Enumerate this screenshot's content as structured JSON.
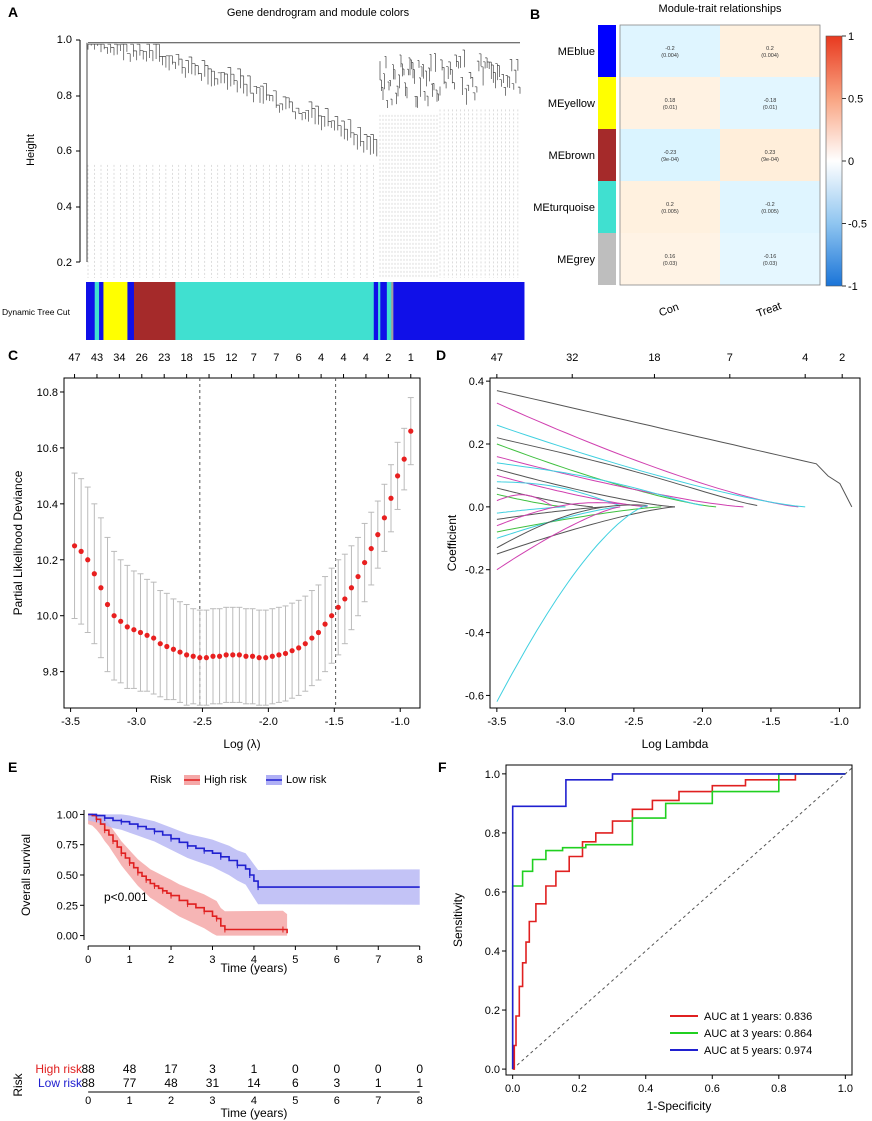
{
  "panels": {
    "A": {
      "letter": "A",
      "title": "Gene dendrogram and module colors",
      "ylabel": "Height",
      "yticks": [
        "1.0",
        "0.8",
        "0.6",
        "0.4",
        "0.2"
      ],
      "tree_cut_label": "Dynamic Tree Cut"
    },
    "B": {
      "letter": "B"
    },
    "C": {
      "letter": "C"
    },
    "D": {
      "letter": "D"
    },
    "E": {
      "letter": "E"
    },
    "F": {
      "letter": "F"
    }
  },
  "chart_data": [
    {
      "panel": "A",
      "type": "dendrogram",
      "title": "Gene dendrogram and module colors",
      "ylabel": "Height",
      "ylim": [
        0.2,
        1.0
      ],
      "module_bar": [
        {
          "color": "#1010e8",
          "fraction": 0.02
        },
        {
          "color": "#40e0d0",
          "fraction": 0.01
        },
        {
          "color": "#1010e8",
          "fraction": 0.01
        },
        {
          "color": "#ffff00",
          "fraction": 0.055
        },
        {
          "color": "#1010e8",
          "fraction": 0.015
        },
        {
          "color": "#a52a2a",
          "fraction": 0.095
        },
        {
          "color": "#40e0d0",
          "fraction": 0.455
        },
        {
          "color": "#1010e8",
          "fraction": 0.01
        },
        {
          "color": "#40e0d0",
          "fraction": 0.005
        },
        {
          "color": "#1010e8",
          "fraction": 0.015
        },
        {
          "color": "#40e0d0",
          "fraction": 0.01
        },
        {
          "color": "#a0a0a0",
          "fraction": 0.005
        },
        {
          "color": "#1010e8",
          "fraction": 0.3
        }
      ]
    },
    {
      "panel": "B",
      "type": "heatmap",
      "title": "Module-trait relationships",
      "rows": [
        "MEblue",
        "MEyellow",
        "MEbrown",
        "MEturquoise",
        "MEgrey"
      ],
      "row_colors": [
        "#0000ff",
        "#ffff00",
        "#a52a2a",
        "#40e0d0",
        "#bebebe"
      ],
      "columns": [
        "Con",
        "Treat"
      ],
      "values": [
        [
          -0.2,
          0.2
        ],
        [
          0.18,
          -0.18
        ],
        [
          -0.23,
          0.23
        ],
        [
          0.2,
          -0.2
        ],
        [
          0.16,
          -0.16
        ]
      ],
      "labels": [
        [
          [
            "-0.2",
            "(0.004)"
          ],
          [
            "0.2",
            "(0.004)"
          ]
        ],
        [
          [
            "0.18",
            "(0.01)"
          ],
          [
            "-0.18",
            "(0.01)"
          ]
        ],
        [
          [
            "-0.23",
            "(9e-04)"
          ],
          [
            "0.23",
            "(9e-04)"
          ]
        ],
        [
          [
            "0.2",
            "(0.005)"
          ],
          [
            "-0.2",
            "(0.005)"
          ]
        ],
        [
          [
            "0.16",
            "(0.03)"
          ],
          [
            "-0.16",
            "(0.03)"
          ]
        ]
      ],
      "colorbar_range": [
        -1,
        1
      ],
      "colorbar_ticks": [
        "1",
        "0.5",
        "0",
        "-0.5",
        "-1"
      ]
    },
    {
      "panel": "C",
      "type": "scatter",
      "xlabel": "Log (λ)",
      "ylabel": "Partial Likelihood Deviance",
      "xlim": [
        -3.55,
        -0.85
      ],
      "ylim": [
        9.67,
        10.85
      ],
      "xticks": [
        "-3.5",
        "-3.0",
        "-2.5",
        "-2.0",
        "-1.5",
        "-1.0"
      ],
      "yticks": [
        "10.8",
        "10.6",
        "10.4",
        "10.2",
        "10.0",
        "9.8"
      ],
      "top_ticks": [
        "47",
        "43",
        "34",
        "26",
        "23",
        "18",
        "15",
        "12",
        "7",
        "7",
        "6",
        "4",
        "4",
        "4",
        "2",
        "1"
      ],
      "vlines": [
        -2.52,
        -1.49
      ],
      "x": [
        -3.47,
        -3.42,
        -3.37,
        -3.32,
        -3.27,
        -3.22,
        -3.17,
        -3.12,
        -3.07,
        -3.02,
        -2.97,
        -2.92,
        -2.87,
        -2.82,
        -2.77,
        -2.72,
        -2.67,
        -2.62,
        -2.57,
        -2.52,
        -2.47,
        -2.42,
        -2.37,
        -2.32,
        -2.27,
        -2.22,
        -2.17,
        -2.12,
        -2.07,
        -2.02,
        -1.97,
        -1.92,
        -1.87,
        -1.82,
        -1.77,
        -1.72,
        -1.67,
        -1.62,
        -1.57,
        -1.52,
        -1.47,
        -1.42,
        -1.37,
        -1.32,
        -1.27,
        -1.22,
        -1.17,
        -1.12,
        -1.07,
        -1.02,
        -0.97,
        -0.92
      ],
      "y": [
        10.25,
        10.23,
        10.2,
        10.15,
        10.1,
        10.04,
        10.0,
        9.98,
        9.96,
        9.95,
        9.94,
        9.93,
        9.92,
        9.9,
        9.89,
        9.88,
        9.87,
        9.86,
        9.855,
        9.85,
        9.85,
        9.855,
        9.855,
        9.86,
        9.86,
        9.86,
        9.855,
        9.855,
        9.85,
        9.85,
        9.855,
        9.86,
        9.865,
        9.875,
        9.885,
        9.9,
        9.92,
        9.94,
        9.97,
        10.0,
        10.03,
        10.06,
        10.1,
        10.14,
        10.19,
        10.24,
        10.29,
        10.35,
        10.42,
        10.5,
        10.56,
        10.66
      ],
      "err": [
        0.26,
        0.26,
        0.26,
        0.25,
        0.25,
        0.24,
        0.23,
        0.22,
        0.22,
        0.21,
        0.21,
        0.2,
        0.2,
        0.19,
        0.19,
        0.18,
        0.18,
        0.18,
        0.17,
        0.17,
        0.17,
        0.17,
        0.17,
        0.17,
        0.17,
        0.17,
        0.17,
        0.17,
        0.17,
        0.17,
        0.17,
        0.17,
        0.17,
        0.17,
        0.17,
        0.17,
        0.17,
        0.17,
        0.17,
        0.17,
        0.17,
        0.16,
        0.15,
        0.14,
        0.14,
        0.13,
        0.12,
        0.12,
        0.12,
        0.12,
        0.11,
        0.12
      ]
    },
    {
      "panel": "D",
      "type": "line",
      "xlabel": "Log Lambda",
      "ylabel": "Coefficient",
      "xlim": [
        -3.55,
        -0.85
      ],
      "ylim": [
        -0.64,
        0.41
      ],
      "xticks": [
        "-3.5",
        "-3.0",
        "-2.5",
        "-2.0",
        "-1.5",
        "-1.0"
      ],
      "yticks": [
        "0.4",
        "0.2",
        "0.0",
        "-0.2",
        "-0.4",
        "-0.6"
      ],
      "top_ticks": [
        "47",
        "32",
        "18",
        "7",
        "4",
        "2"
      ],
      "end_lambda": -0.91,
      "series": [
        {
          "color": "#555555",
          "start": 0.37,
          "end_at": -0.91
        },
        {
          "color": "#d040b0",
          "start": 0.33,
          "end_at": -1.3
        },
        {
          "color": "#40d0e0",
          "start": 0.26,
          "end_at": -1.25
        },
        {
          "color": "#555555",
          "start": 0.22,
          "end_at": -1.6
        },
        {
          "color": "#40c040",
          "start": 0.2,
          "end_at": -1.9
        },
        {
          "color": "#d040b0",
          "start": 0.16,
          "end_at": -1.7
        },
        {
          "color": "#40d0e0",
          "start": 0.14,
          "end_at": -2.0
        },
        {
          "color": "#555555",
          "start": 0.12,
          "end_at": -2.2
        },
        {
          "color": "#d040b0",
          "start": 0.1,
          "end_at": -2.4
        },
        {
          "color": "#40d0e0",
          "start": 0.08,
          "end_at": -2.6
        },
        {
          "color": "#555555",
          "start": 0.06,
          "end_at": -2.8
        },
        {
          "color": "#40c040",
          "start": 0.04,
          "end_at": -3.0
        },
        {
          "color": "#d040b0",
          "start": 0.02,
          "end_at": -3.1
        },
        {
          "color": "#40d0e0",
          "start": -0.02,
          "end_at": -3.0
        },
        {
          "color": "#555555",
          "start": -0.04,
          "end_at": -2.7
        },
        {
          "color": "#d040b0",
          "start": -0.06,
          "end_at": -2.5
        },
        {
          "color": "#40c040",
          "start": -0.08,
          "end_at": -2.3
        },
        {
          "color": "#40d0e0",
          "start": -0.1,
          "end_at": -2.6
        },
        {
          "color": "#555555",
          "start": -0.13,
          "end_at": -2.4
        },
        {
          "color": "#555555",
          "start": -0.15,
          "end_at": -2.2
        },
        {
          "color": "#d040b0",
          "start": -0.2,
          "end_at": -2.6
        },
        {
          "color": "#40d0e0",
          "start": -0.62,
          "end_at": -2.4
        }
      ]
    },
    {
      "panel": "E",
      "type": "line",
      "legend_title": "Risk",
      "legend": [
        "High risk",
        "Low risk"
      ],
      "xlabel": "Time (years)",
      "ylabel": "Overall survival",
      "xlim": [
        -0.1,
        8.2
      ],
      "ylim": [
        -0.02,
        1.02
      ],
      "xticks": [
        "0",
        "1",
        "2",
        "3",
        "4",
        "5",
        "6",
        "7",
        "8"
      ],
      "yticks": [
        "1.00",
        "0.75",
        "0.50",
        "0.25",
        "0.00"
      ],
      "annotation": "p<0.001",
      "series": [
        {
          "name": "High risk",
          "color": "#e02020",
          "x": [
            0,
            0.1,
            0.2,
            0.3,
            0.4,
            0.5,
            0.6,
            0.7,
            0.8,
            0.9,
            1.0,
            1.1,
            1.2,
            1.3,
            1.4,
            1.5,
            1.6,
            1.7,
            1.8,
            1.9,
            2.0,
            2.2,
            2.4,
            2.6,
            2.8,
            3.0,
            3.1,
            3.2,
            3.3,
            4.0,
            4.7,
            4.8
          ],
          "y": [
            1.0,
            0.99,
            0.96,
            0.92,
            0.87,
            0.83,
            0.78,
            0.73,
            0.68,
            0.64,
            0.6,
            0.56,
            0.52,
            0.49,
            0.46,
            0.43,
            0.41,
            0.39,
            0.37,
            0.35,
            0.33,
            0.29,
            0.26,
            0.23,
            0.2,
            0.16,
            0.14,
            0.08,
            0.05,
            0.05,
            0.05,
            0.02
          ]
        },
        {
          "name": "Low risk",
          "color": "#2020d0",
          "x": [
            0,
            0.2,
            0.4,
            0.6,
            0.8,
            1.0,
            1.2,
            1.4,
            1.6,
            1.8,
            2.0,
            2.2,
            2.4,
            2.6,
            2.8,
            3.0,
            3.2,
            3.4,
            3.6,
            3.8,
            3.9,
            4.0,
            4.1,
            8.0
          ],
          "y": [
            1.0,
            0.99,
            0.97,
            0.95,
            0.94,
            0.92,
            0.9,
            0.88,
            0.86,
            0.83,
            0.8,
            0.77,
            0.74,
            0.72,
            0.7,
            0.68,
            0.65,
            0.62,
            0.58,
            0.55,
            0.5,
            0.45,
            0.4,
            0.4
          ]
        }
      ],
      "risk_table": {
        "title": "Risk",
        "xlabel": "Time (years)",
        "rows": [
          {
            "label": "High risk",
            "color": "#e02020",
            "values": [
              "88",
              "48",
              "17",
              "3",
              "1",
              "0",
              "0",
              "0",
              "0"
            ]
          },
          {
            "label": "Low risk",
            "color": "#2020d0",
            "values": [
              "88",
              "77",
              "48",
              "31",
              "14",
              "6",
              "3",
              "1",
              "1"
            ]
          }
        ]
      }
    },
    {
      "panel": "F",
      "type": "line",
      "xlabel": "1-Specificity",
      "ylabel": "Sensitivity",
      "xlim": [
        -0.02,
        1.02
      ],
      "ylim": [
        -0.02,
        1.03
      ],
      "xticks": [
        "0.0",
        "0.2",
        "0.4",
        "0.6",
        "0.8",
        "1.0"
      ],
      "yticks": [
        "1.0",
        "0.8",
        "0.6",
        "0.4",
        "0.2",
        "0.0"
      ],
      "series": [
        {
          "name": "AUC at 1 years: 0.836",
          "color": "#e02020",
          "x": [
            0,
            0.005,
            0.005,
            0.01,
            0.01,
            0.02,
            0.02,
            0.03,
            0.03,
            0.04,
            0.04,
            0.05,
            0.05,
            0.07,
            0.07,
            0.1,
            0.1,
            0.13,
            0.13,
            0.17,
            0.17,
            0.21,
            0.21,
            0.25,
            0.25,
            0.3,
            0.3,
            0.36,
            0.36,
            0.42,
            0.42,
            0.5,
            0.5,
            0.6,
            0.6,
            0.7,
            0.7,
            0.85,
            0.85,
            1.0
          ],
          "y": [
            0,
            0,
            0.08,
            0.08,
            0.18,
            0.18,
            0.28,
            0.28,
            0.36,
            0.36,
            0.43,
            0.43,
            0.5,
            0.5,
            0.56,
            0.56,
            0.62,
            0.62,
            0.67,
            0.67,
            0.72,
            0.72,
            0.77,
            0.77,
            0.8,
            0.8,
            0.84,
            0.84,
            0.88,
            0.88,
            0.91,
            0.91,
            0.94,
            0.94,
            0.96,
            0.96,
            0.98,
            0.98,
            1.0,
            1.0
          ]
        },
        {
          "name": "AUC at 3 years: 0.864",
          "color": "#20d020",
          "x": [
            0,
            0,
            0.03,
            0.03,
            0.06,
            0.06,
            0.1,
            0.1,
            0.15,
            0.15,
            0.22,
            0.22,
            0.3,
            0.3,
            0.36,
            0.36,
            0.46,
            0.46,
            0.6,
            0.6,
            0.8,
            0.8,
            1.0
          ],
          "y": [
            0,
            0.62,
            0.62,
            0.67,
            0.67,
            0.71,
            0.71,
            0.74,
            0.74,
            0.75,
            0.75,
            0.76,
            0.76,
            0.76,
            0.76,
            0.85,
            0.85,
            0.9,
            0.9,
            0.94,
            0.94,
            1.0,
            1.0
          ]
        },
        {
          "name": "AUC at 5 years: 0.974",
          "color": "#2020d0",
          "x": [
            0,
            0,
            0.16,
            0.16,
            0.3,
            0.3,
            1.0
          ],
          "y": [
            0,
            0.89,
            0.89,
            0.98,
            0.98,
            1.0,
            1.0
          ]
        }
      ]
    }
  ]
}
